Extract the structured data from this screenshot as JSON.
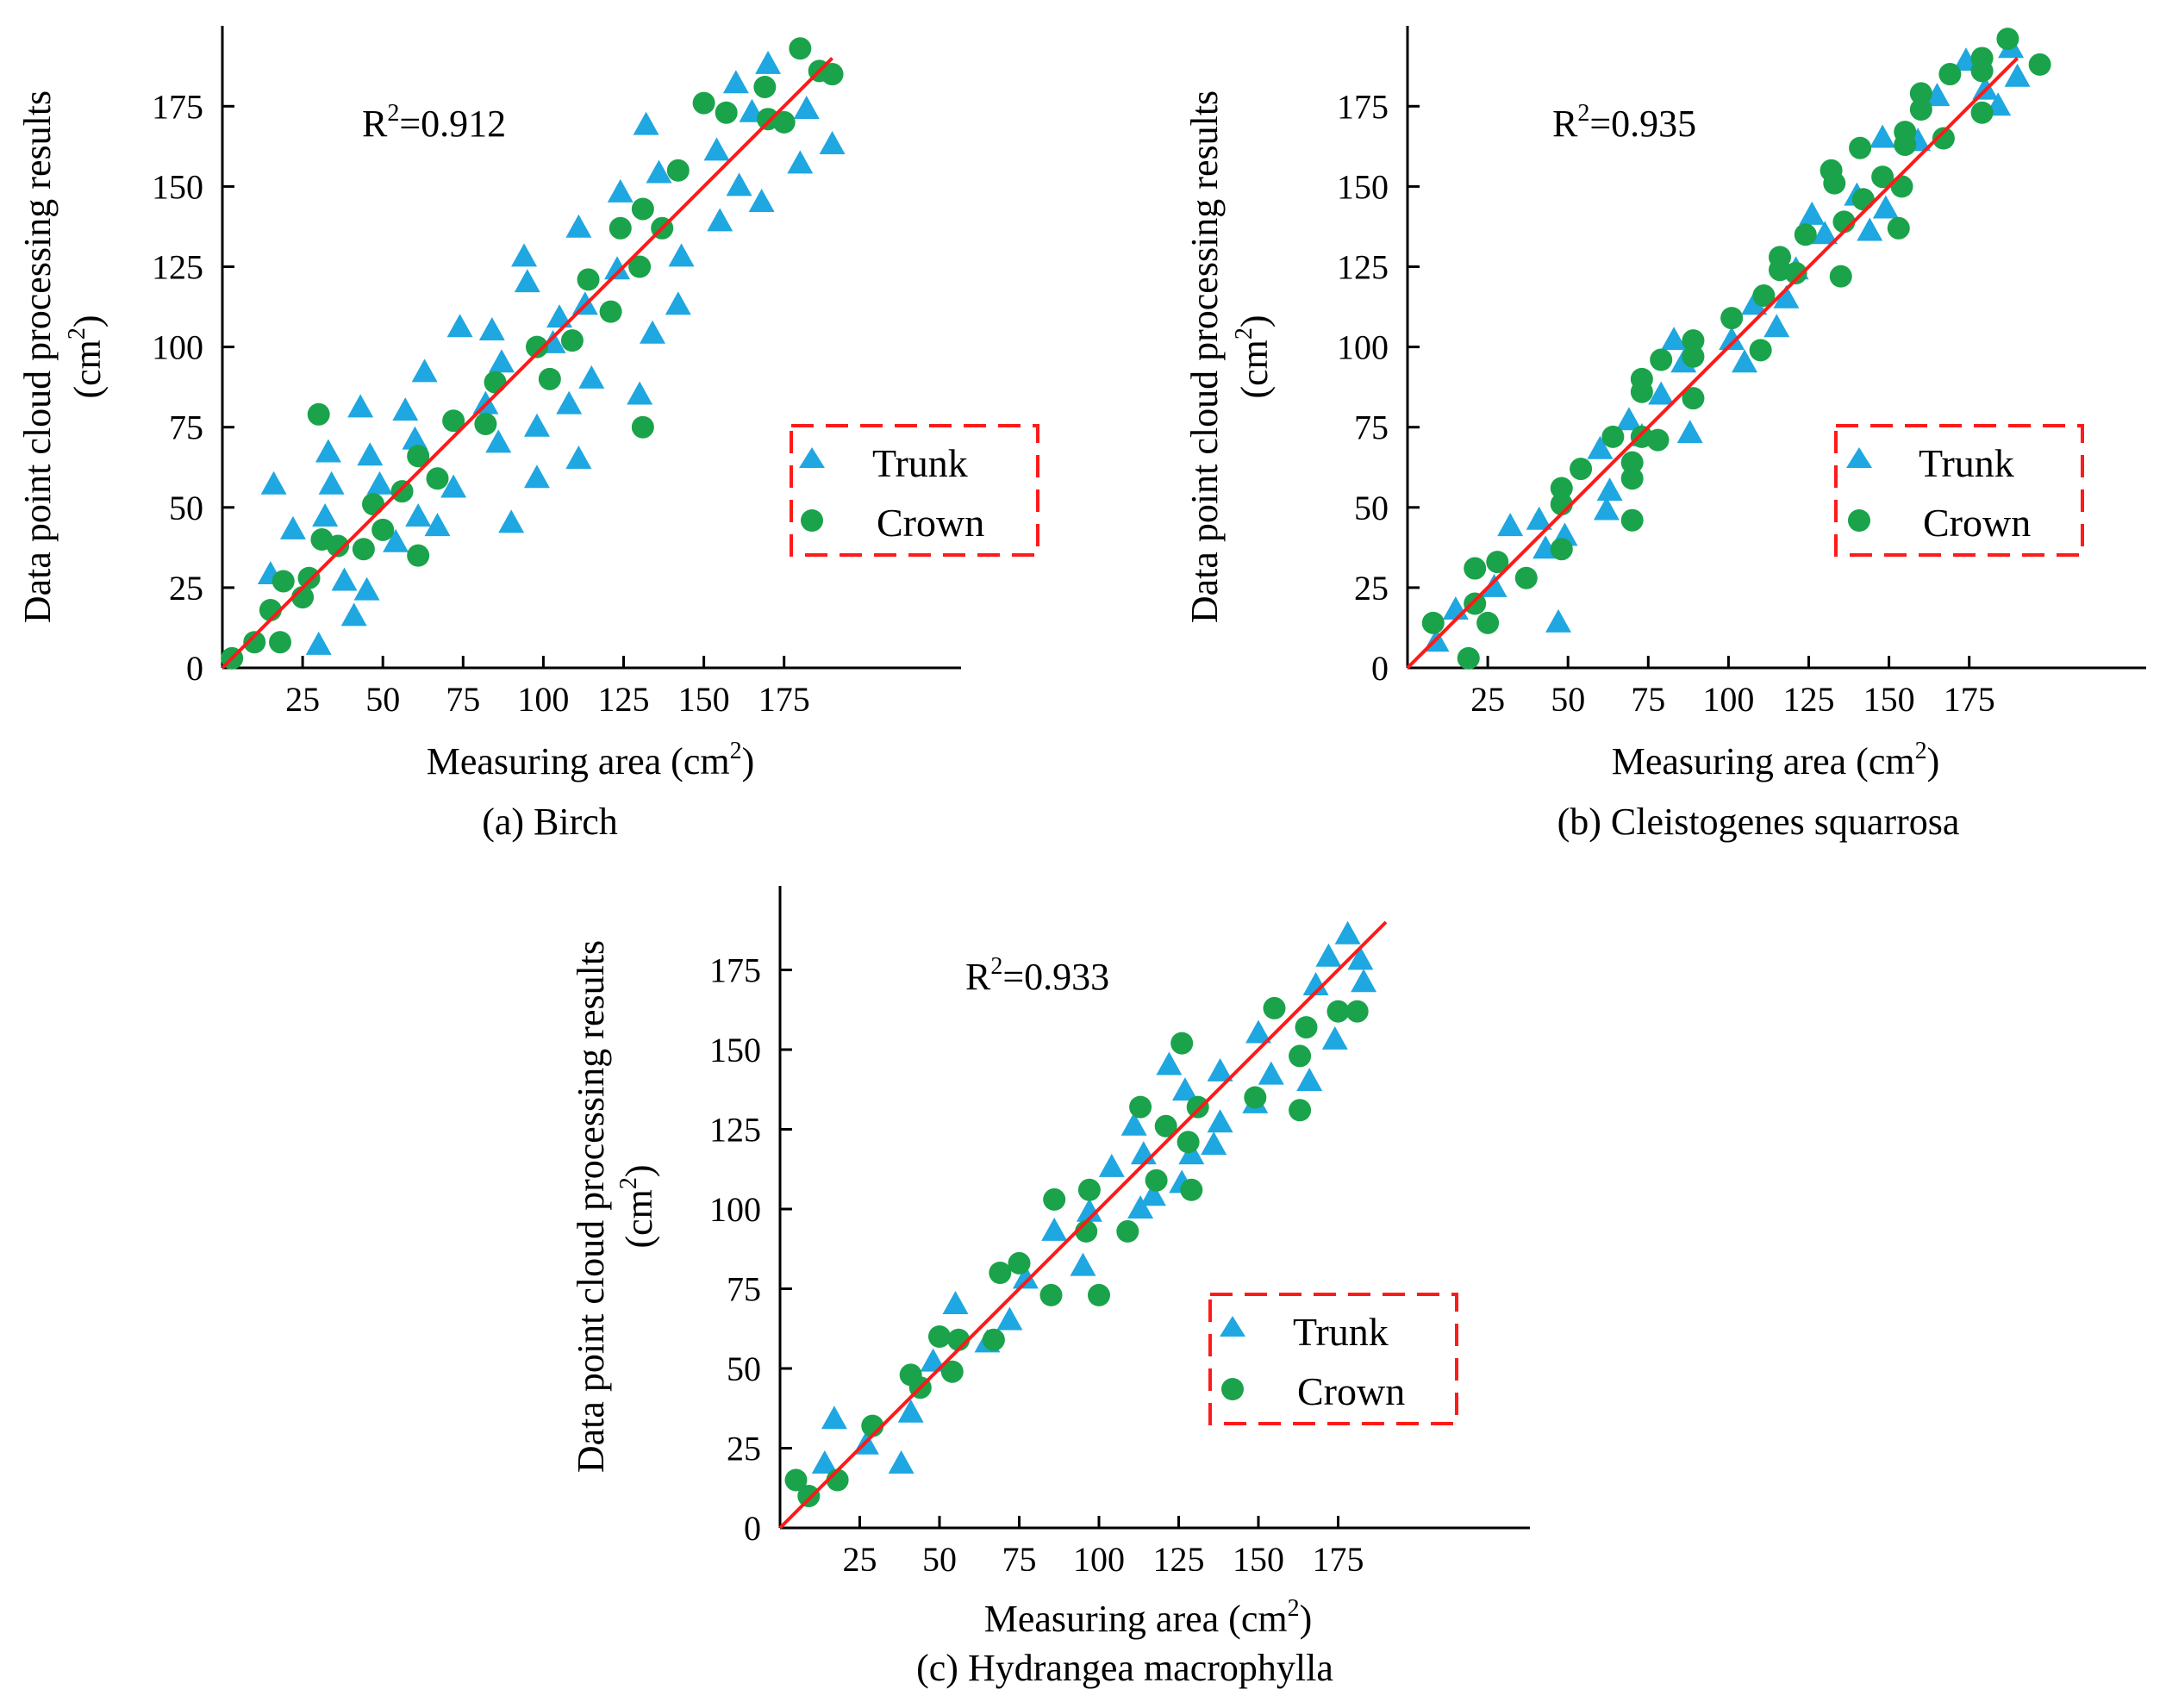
{
  "colors": {
    "trunk": "#1ea7e1",
    "crown": "#1aa34a",
    "fit_line": "#ff1a1a",
    "legend_border": "#ff1a1a",
    "axis": "#000000"
  },
  "legend": {
    "trunk_label": "Trunk",
    "crown_label": "Crown",
    "trunk_marker": "triangle",
    "crown_marker": "circle",
    "placement": "lower-right",
    "border": "dashed red"
  },
  "axis_text": {
    "xlabel_prefix": "Measuring area (cm",
    "xlabel_suffix": ")",
    "ylabel_line1": "Data point cloud processing results",
    "ylabel_line2_prefix": "(cm",
    "ylabel_line2_suffix": ")",
    "superscript": "2",
    "r2_prefix": "R",
    "r2_superscript": "2"
  },
  "chart_data": [
    {
      "type": "scatter",
      "caption": "(a) Birch",
      "r2_value": "=0.912",
      "xlim": [
        0,
        200
      ],
      "ylim": [
        0,
        200
      ],
      "xticks": [
        25,
        50,
        75,
        100,
        125,
        150,
        175
      ],
      "yticks": [
        0,
        25,
        50,
        75,
        100,
        125,
        150,
        175
      ],
      "fit_line": {
        "x": [
          0,
          190
        ],
        "y": [
          0,
          190
        ]
      },
      "series": [
        {
          "name": "Trunk",
          "marker": "triangle",
          "points": [
            [
              15,
              29
            ],
            [
              16,
              57
            ],
            [
              22,
              43
            ],
            [
              30,
              7
            ],
            [
              32,
              47
            ],
            [
              33,
              67
            ],
            [
              34,
              57
            ],
            [
              38,
              27
            ],
            [
              41,
              16
            ],
            [
              43,
              81
            ],
            [
              45,
              24
            ],
            [
              46,
              66
            ],
            [
              49,
              57
            ],
            [
              54,
              39
            ],
            [
              57,
              80
            ],
            [
              60,
              71
            ],
            [
              61,
              47
            ],
            [
              63,
              92
            ],
            [
              67,
              44
            ],
            [
              72,
              56
            ],
            [
              74,
              106
            ],
            [
              82,
              82
            ],
            [
              84,
              105
            ],
            [
              86,
              70
            ],
            [
              87,
              95
            ],
            [
              90,
              45
            ],
            [
              94,
              128
            ],
            [
              95,
              120
            ],
            [
              98,
              59
            ],
            [
              98,
              75
            ],
            [
              103,
              101
            ],
            [
              105,
              109
            ],
            [
              108,
              82
            ],
            [
              111,
              137
            ],
            [
              111,
              65
            ],
            [
              113,
              113
            ],
            [
              115,
              90
            ],
            [
              123,
              124
            ],
            [
              124,
              148
            ],
            [
              130,
              85
            ],
            [
              132,
              169
            ],
            [
              134,
              104
            ],
            [
              136,
              154
            ],
            [
              142,
              113
            ],
            [
              143,
              128
            ],
            [
              154,
              161
            ],
            [
              155,
              139
            ],
            [
              160,
              182
            ],
            [
              161,
              150
            ],
            [
              165,
              173
            ],
            [
              168,
              145
            ],
            [
              170,
              188
            ],
            [
              180,
              157
            ],
            [
              182,
              174
            ],
            [
              190,
              163
            ]
          ]
        },
        {
          "name": "Crown",
          "marker": "circle",
          "points": [
            [
              3,
              3
            ],
            [
              10,
              8
            ],
            [
              15,
              18
            ],
            [
              18,
              8
            ],
            [
              19,
              27
            ],
            [
              25,
              22
            ],
            [
              27,
              28
            ],
            [
              30,
              79
            ],
            [
              31,
              40
            ],
            [
              36,
              38
            ],
            [
              44,
              37
            ],
            [
              47,
              51
            ],
            [
              50,
              43
            ],
            [
              56,
              55
            ],
            [
              61,
              35
            ],
            [
              61,
              66
            ],
            [
              67,
              59
            ],
            [
              72,
              77
            ],
            [
              82,
              76
            ],
            [
              85,
              89
            ],
            [
              98,
              100
            ],
            [
              102,
              90
            ],
            [
              109,
              102
            ],
            [
              114,
              121
            ],
            [
              121,
              111
            ],
            [
              124,
              137
            ],
            [
              130,
              125
            ],
            [
              131,
              143
            ],
            [
              131,
              75
            ],
            [
              137,
              137
            ],
            [
              142,
              155
            ],
            [
              150,
              176
            ],
            [
              157,
              173
            ],
            [
              169,
              181
            ],
            [
              170,
              171
            ],
            [
              175,
              170
            ],
            [
              180,
              193
            ],
            [
              186,
              186
            ],
            [
              190,
              185
            ]
          ]
        }
      ]
    },
    {
      "type": "scatter",
      "caption": "(b) Cleistogenes squarrosa",
      "r2_value": "=0.935",
      "xlim": [
        0,
        200
      ],
      "ylim": [
        0,
        200
      ],
      "xticks": [
        25,
        50,
        75,
        100,
        125,
        150,
        175
      ],
      "yticks": [
        0,
        25,
        50,
        75,
        100,
        125,
        150,
        175
      ],
      "fit_line": {
        "x": [
          0,
          190
        ],
        "y": [
          0,
          190
        ]
      },
      "series": [
        {
          "name": "Trunk",
          "marker": "triangle",
          "points": [
            [
              9,
              8
            ],
            [
              15,
              18
            ],
            [
              27,
              25
            ],
            [
              32,
              44
            ],
            [
              41,
              46
            ],
            [
              43,
              37
            ],
            [
              47,
              14
            ],
            [
              49,
              41
            ],
            [
              60,
              68
            ],
            [
              62,
              49
            ],
            [
              63,
              55
            ],
            [
              69,
              77
            ],
            [
              73,
              72
            ],
            [
              79,
              85
            ],
            [
              83,
              102
            ],
            [
              86,
              95
            ],
            [
              88,
              73
            ],
            [
              101,
              102
            ],
            [
              105,
              95
            ],
            [
              108,
              113
            ],
            [
              115,
              106
            ],
            [
              118,
              115
            ],
            [
              121,
              124
            ],
            [
              126,
              141
            ],
            [
              130,
              135
            ],
            [
              140,
              147
            ],
            [
              144,
              136
            ],
            [
              148,
              165
            ],
            [
              149,
              143
            ],
            [
              159,
              164
            ],
            [
              165,
              178
            ],
            [
              174,
              189
            ],
            [
              180,
              180
            ],
            [
              184,
              175
            ],
            [
              188,
              193
            ],
            [
              190,
              184
            ]
          ]
        },
        {
          "name": "Crown",
          "marker": "circle",
          "points": [
            [
              8,
              14
            ],
            [
              19,
              3
            ],
            [
              21,
              20
            ],
            [
              21,
              31
            ],
            [
              25,
              14
            ],
            [
              28,
              33
            ],
            [
              37,
              28
            ],
            [
              48,
              37
            ],
            [
              48,
              51
            ],
            [
              48,
              56
            ],
            [
              54,
              62
            ],
            [
              64,
              72
            ],
            [
              70,
              46
            ],
            [
              70,
              59
            ],
            [
              70,
              64
            ],
            [
              73,
              72
            ],
            [
              73,
              86
            ],
            [
              73,
              90
            ],
            [
              78,
              71
            ],
            [
              79,
              96
            ],
            [
              89,
              84
            ],
            [
              89,
              97
            ],
            [
              89,
              102
            ],
            [
              101,
              109
            ],
            [
              110,
              99
            ],
            [
              111,
              116
            ],
            [
              116,
              124
            ],
            [
              116,
              128
            ],
            [
              121,
              123
            ],
            [
              124,
              135
            ],
            [
              132,
              155
            ],
            [
              133,
              151
            ],
            [
              135,
              122
            ],
            [
              136,
              139
            ],
            [
              141,
              162
            ],
            [
              142,
              146
            ],
            [
              148,
              153
            ],
            [
              153,
              137
            ],
            [
              154,
              150
            ],
            [
              155,
              163
            ],
            [
              155,
              167
            ],
            [
              160,
              174
            ],
            [
              160,
              179
            ],
            [
              167,
              165
            ],
            [
              169,
              185
            ],
            [
              179,
              173
            ],
            [
              179,
              186
            ],
            [
              179,
              190
            ],
            [
              187,
              196
            ],
            [
              197,
              188
            ]
          ]
        }
      ]
    },
    {
      "type": "scatter",
      "caption": "(c) Hydrangea macrophylla",
      "r2_value": "=0.933",
      "xlim": [
        0,
        200
      ],
      "ylim": [
        0,
        200
      ],
      "xticks": [
        25,
        50,
        75,
        100,
        125,
        150,
        175
      ],
      "yticks": [
        0,
        25,
        50,
        75,
        100,
        125,
        150,
        175
      ],
      "fit_line": {
        "x": [
          0,
          190
        ],
        "y": [
          0,
          190
        ]
      },
      "series": [
        {
          "name": "Trunk",
          "marker": "triangle",
          "points": [
            [
              14,
              20
            ],
            [
              17,
              34
            ],
            [
              27,
              26
            ],
            [
              38,
              20
            ],
            [
              41,
              36
            ],
            [
              48,
              52
            ],
            [
              55,
              70
            ],
            [
              65,
              58
            ],
            [
              72,
              65
            ],
            [
              77,
              78
            ],
            [
              86,
              93
            ],
            [
              95,
              82
            ],
            [
              97,
              99
            ],
            [
              104,
              113
            ],
            [
              111,
              126
            ],
            [
              113,
              100
            ],
            [
              114,
              117
            ],
            [
              117,
              104
            ],
            [
              122,
              145
            ],
            [
              126,
              108
            ],
            [
              127,
              137
            ],
            [
              129,
              117
            ],
            [
              136,
              120
            ],
            [
              138,
              143
            ],
            [
              138,
              127
            ],
            [
              149,
              133
            ],
            [
              150,
              155
            ],
            [
              154,
              142
            ],
            [
              166,
              140
            ],
            [
              168,
              170
            ],
            [
              172,
              179
            ],
            [
              174,
              153
            ],
            [
              178,
              186
            ],
            [
              182,
              178
            ],
            [
              183,
              171
            ]
          ]
        },
        {
          "name": "Crown",
          "marker": "circle",
          "points": [
            [
              5,
              15
            ],
            [
              9,
              10
            ],
            [
              18,
              15
            ],
            [
              29,
              32
            ],
            [
              41,
              48
            ],
            [
              44,
              44
            ],
            [
              50,
              60
            ],
            [
              54,
              49
            ],
            [
              56,
              59
            ],
            [
              67,
              59
            ],
            [
              69,
              80
            ],
            [
              75,
              83
            ],
            [
              85,
              73
            ],
            [
              86,
              103
            ],
            [
              96,
              93
            ],
            [
              97,
              106
            ],
            [
              100,
              73
            ],
            [
              109,
              93
            ],
            [
              113,
              132
            ],
            [
              118,
              109
            ],
            [
              121,
              126
            ],
            [
              126,
              152
            ],
            [
              128,
              121
            ],
            [
              129,
              106
            ],
            [
              131,
              132
            ],
            [
              149,
              135
            ],
            [
              155,
              163
            ],
            [
              163,
              131
            ],
            [
              163,
              148
            ],
            [
              165,
              157
            ],
            [
              175,
              162
            ],
            [
              181,
              162
            ]
          ]
        }
      ]
    }
  ]
}
